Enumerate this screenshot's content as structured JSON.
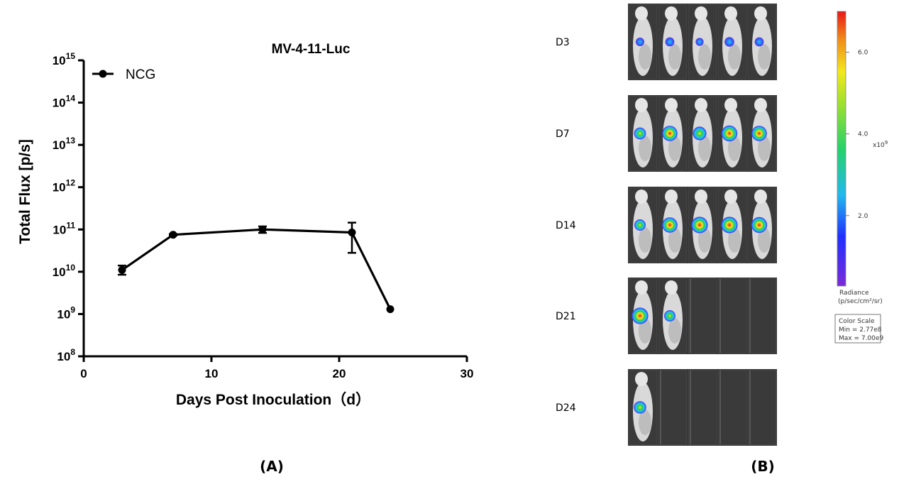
{
  "panel_a_label": "(A)",
  "panel_b_label": "(B)",
  "chart_data": {
    "type": "line",
    "title": "MV-4-11-Luc",
    "xlabel": "Days Post Inoculation（d）",
    "ylabel": "Total Flux [p/s]",
    "xlim": [
      0,
      30
    ],
    "x_ticks": [
      0,
      10,
      20,
      30
    ],
    "y_scale": "log",
    "ylim": [
      100000000,
      1000000000000000
    ],
    "y_tick_exponents": [
      8,
      9,
      10,
      11,
      12,
      13,
      14,
      15
    ],
    "y_tick_base": "10",
    "legend_position": "top-left",
    "series": [
      {
        "name": "NCG",
        "x": [
          3,
          7,
          14,
          21,
          24
        ],
        "y": [
          11000000000,
          75000000000,
          100000000000,
          85000000000,
          1300000000
        ],
        "err_low": [
          8500000000,
          72000000000,
          83000000000,
          28000000000,
          1300000000
        ],
        "err_high": [
          14000000000,
          78000000000,
          118000000000,
          145000000000,
          1300000000
        ]
      }
    ]
  },
  "imaging": {
    "rows": [
      {
        "day": "D3",
        "mice_count": 5,
        "signal_intensity": [
          0.25,
          0.3,
          0.2,
          0.35,
          0.3
        ]
      },
      {
        "day": "D7",
        "mice_count": 5,
        "signal_intensity": [
          0.55,
          0.85,
          0.7,
          0.9,
          0.85
        ]
      },
      {
        "day": "D14",
        "mice_count": 5,
        "signal_intensity": [
          0.5,
          0.85,
          0.95,
          0.95,
          0.9
        ]
      },
      {
        "day": "D21",
        "mice_count": 2,
        "signal_intensity": [
          0.95,
          0.5
        ]
      },
      {
        "day": "D24",
        "mice_count": 1,
        "signal_intensity": [
          0.6
        ]
      }
    ],
    "slots_per_row": 5,
    "colors": {
      "low": "#5a2dd8",
      "mid_blue": "#2b6cff",
      "cyan": "#22c8e8",
      "green": "#2ad04a",
      "yellow": "#f4e81e",
      "red": "#e8221e"
    }
  },
  "color_scale": {
    "ticks": [
      "6.0",
      "4.0",
      "2.0"
    ],
    "tick_values": [
      6.0,
      4.0,
      2.0
    ],
    "min_value": 0.277,
    "max_value": 7.0,
    "multiplier": "x10",
    "multiplier_exp": "9",
    "radiance_label": "Radiance",
    "radiance_units": "(p/sec/cm²/sr)",
    "box_title": "Color Scale",
    "min_text": "Min = 2.77e8",
    "max_text": "Max = 7.00e9"
  }
}
